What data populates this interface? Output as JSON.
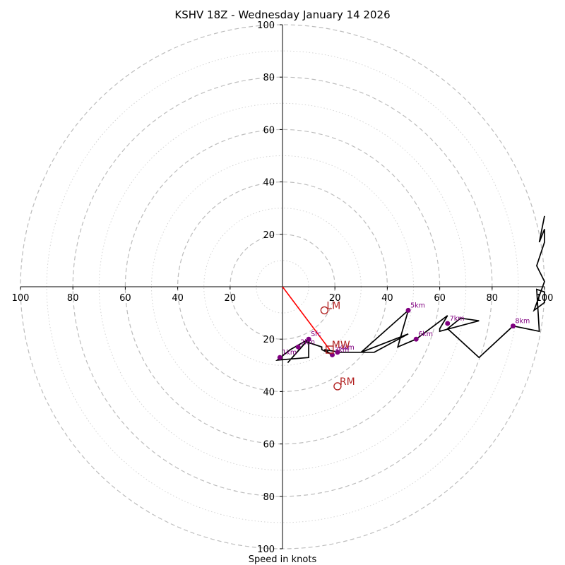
{
  "chart_data": {
    "type": "hodograph",
    "title": "KSHV 18Z - Wednesday January 14 2026",
    "xlabel": "Speed in knots",
    "range": 100,
    "ring_step_dashed": 20,
    "ring_step_dotted": 10,
    "ticks": {
      "top": [
        "20",
        "40",
        "60",
        "80",
        "100"
      ],
      "bottom": [
        "20",
        "40",
        "60",
        "80",
        "100"
      ],
      "left": [
        "20",
        "40",
        "60",
        "80",
        "100"
      ],
      "right": [
        "20",
        "40",
        "60",
        "80",
        "100"
      ]
    },
    "grid": true,
    "trace_color": "#000000",
    "height_marker_color": "#800080",
    "motion_color": "#b22222",
    "shear_vector_color": "#ff0000",
    "hodograph": [
      [
        10,
        -20
      ],
      [
        3,
        -24
      ],
      [
        -2,
        -28
      ],
      [
        10,
        -27
      ],
      [
        10,
        -20
      ],
      [
        2,
        -29
      ],
      [
        9,
        -21
      ],
      [
        15,
        -23
      ],
      [
        15,
        -24
      ],
      [
        19,
        -26
      ],
      [
        16,
        -24
      ],
      [
        22,
        -25
      ],
      [
        35,
        -25
      ],
      [
        48,
        -18
      ],
      [
        30,
        -25
      ],
      [
        48,
        -9
      ],
      [
        44,
        -23
      ],
      [
        51,
        -20
      ],
      [
        63,
        -11
      ],
      [
        60,
        -16
      ],
      [
        60,
        -17
      ],
      [
        75,
        -13
      ],
      [
        68,
        -12
      ],
      [
        63,
        -16
      ],
      [
        75,
        -27
      ],
      [
        88,
        -15
      ],
      [
        98,
        -17
      ],
      [
        97,
        -1
      ],
      [
        100,
        -2
      ],
      [
        100,
        -6
      ],
      [
        96,
        -9
      ],
      [
        100,
        2
      ],
      [
        97,
        8
      ],
      [
        100,
        17
      ],
      [
        100,
        22
      ],
      [
        98,
        17
      ],
      [
        100,
        27
      ]
    ],
    "height_markers": [
      {
        "label": "Sfc",
        "u": 10,
        "v": -20
      },
      {
        "label": "1km",
        "u": -1,
        "v": -27
      },
      {
        "label": "2km",
        "u": 6,
        "v": -23
      },
      {
        "label": "3km",
        "u": 19,
        "v": -26
      },
      {
        "label": "4km",
        "u": 21,
        "v": -25
      },
      {
        "label": "5km",
        "u": 48,
        "v": -9
      },
      {
        "label": "6km",
        "u": 51,
        "v": -20
      },
      {
        "label": "7km",
        "u": 63,
        "v": -14
      },
      {
        "label": "8km",
        "u": 88,
        "v": -15
      }
    ],
    "storm_motion": [
      {
        "label": "LM",
        "u": 16,
        "v": -9,
        "marker": "circle"
      },
      {
        "label": "MW",
        "u": 18,
        "v": -24,
        "marker": "square"
      },
      {
        "label": "RM",
        "u": 21,
        "v": -38,
        "marker": "circle"
      }
    ],
    "shear_vector": {
      "from": [
        0,
        0
      ],
      "to": [
        18,
        -24
      ]
    }
  }
}
